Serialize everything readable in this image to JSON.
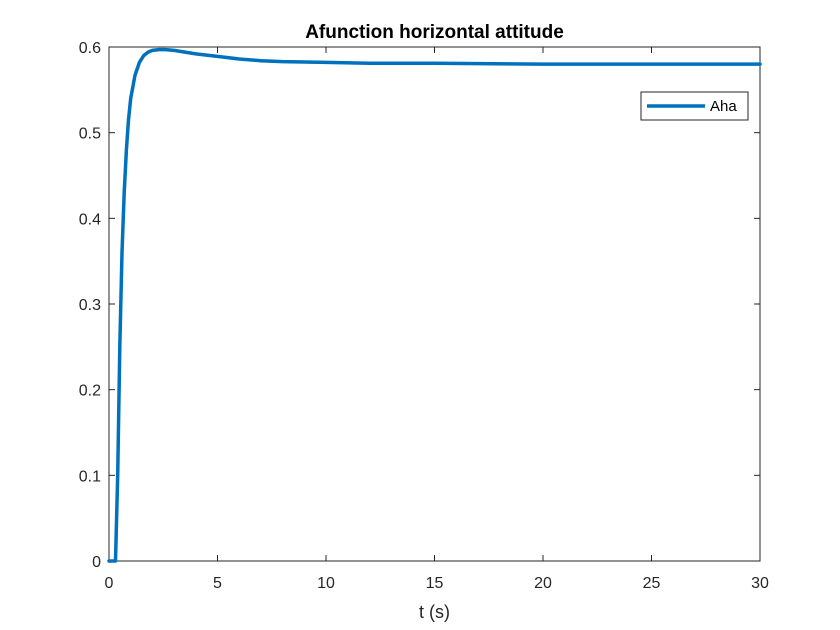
{
  "chart_data": {
    "type": "line",
    "title": "Afunction horizontal attitude",
    "xlabel": "t (s)",
    "ylabel": "",
    "xlim": [
      0,
      30
    ],
    "ylim": [
      0,
      0.6
    ],
    "xticks": [
      0,
      5,
      10,
      15,
      20,
      25,
      30
    ],
    "yticks": [
      0,
      0.1,
      0.2,
      0.3,
      0.4,
      0.5,
      0.6
    ],
    "xtick_labels": [
      "0",
      "5",
      "10",
      "15",
      "20",
      "25",
      "30"
    ],
    "ytick_labels": [
      "0",
      "0.1",
      "0.2",
      "0.3",
      "0.4",
      "0.5",
      "0.6"
    ],
    "grid": false,
    "legend": {
      "position": "top-right",
      "entries": [
        "Aha"
      ]
    },
    "series": [
      {
        "name": "Aha",
        "color": "#0072BD",
        "x": [
          0,
          0.3,
          0.4,
          0.5,
          0.6,
          0.7,
          0.8,
          0.9,
          1.0,
          1.2,
          1.4,
          1.6,
          1.8,
          2.0,
          2.3,
          2.6,
          3.0,
          3.5,
          4.0,
          5.0,
          6.0,
          7.0,
          8.0,
          10.0,
          12.0,
          15.0,
          20.0,
          25.0,
          30.0
        ],
        "y": [
          0,
          0,
          0.1,
          0.25,
          0.36,
          0.43,
          0.48,
          0.515,
          0.54,
          0.567,
          0.582,
          0.59,
          0.594,
          0.596,
          0.597,
          0.597,
          0.596,
          0.594,
          0.592,
          0.589,
          0.586,
          0.584,
          0.583,
          0.582,
          0.581,
          0.581,
          0.58,
          0.58,
          0.58
        ]
      }
    ]
  }
}
